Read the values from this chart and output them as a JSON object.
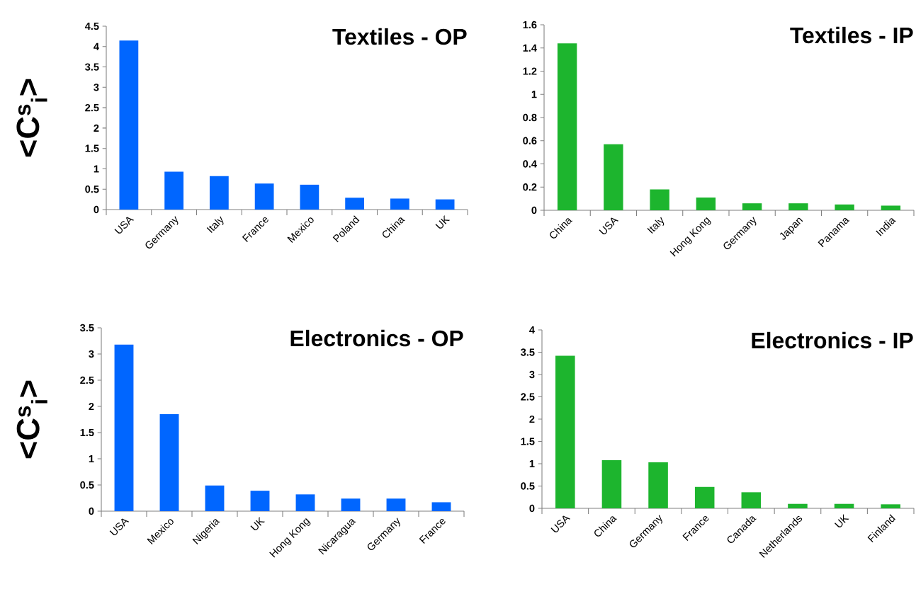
{
  "chart_data": [
    {
      "type": "bar",
      "title": "Textiles - OP",
      "ylabel": "<C$^{s}$$_{i}$>",
      "categories": [
        "USA",
        "Germany",
        "Italy",
        "France",
        "Mexico",
        "Poland",
        "China",
        "UK"
      ],
      "values": [
        4.15,
        0.93,
        0.82,
        0.64,
        0.61,
        0.29,
        0.27,
        0.25
      ],
      "color": "#0066ff",
      "ylim": [
        0,
        4.5
      ],
      "yticks": [
        0,
        0.5,
        1,
        1.5,
        2,
        2.5,
        3,
        3.5,
        4,
        4.5
      ]
    },
    {
      "type": "bar",
      "title": "Textiles - IP",
      "categories": [
        "China",
        "USA",
        "Italy",
        "Hong Kong",
        "Germany",
        "Japan",
        "Panama",
        "India"
      ],
      "values": [
        1.44,
        0.57,
        0.18,
        0.11,
        0.06,
        0.06,
        0.05,
        0.04
      ],
      "color": "#1db52e",
      "ylim": [
        0,
        1.6
      ],
      "yticks": [
        0,
        0.2,
        0.4,
        0.6,
        0.8,
        1,
        1.2,
        1.4,
        1.6
      ]
    },
    {
      "type": "bar",
      "title": "Electronics - OP",
      "ylabel": "<C$^{s}$$_{i}$>",
      "categories": [
        "USA",
        "Mexico",
        "Nigeria",
        "UK",
        "Hong Kong",
        "Nicaragua",
        "Germany",
        "France"
      ],
      "values": [
        3.18,
        1.85,
        0.49,
        0.39,
        0.32,
        0.24,
        0.24,
        0.17
      ],
      "color": "#0066ff",
      "ylim": [
        0,
        3.5
      ],
      "yticks": [
        0,
        0.5,
        1,
        1.5,
        2,
        2.5,
        3,
        3.5
      ]
    },
    {
      "type": "bar",
      "title": "Electronics - IP",
      "categories": [
        "USA",
        "China",
        "Germany",
        "France",
        "Canada",
        "Netherlands",
        "UK",
        "Finland"
      ],
      "values": [
        3.42,
        1.08,
        1.03,
        0.48,
        0.36,
        0.1,
        0.1,
        0.09
      ],
      "color": "#1db52e",
      "ylim": [
        0,
        4
      ],
      "yticks": [
        0,
        0.5,
        1,
        1.5,
        2,
        2.5,
        3,
        3.5,
        4
      ]
    }
  ]
}
